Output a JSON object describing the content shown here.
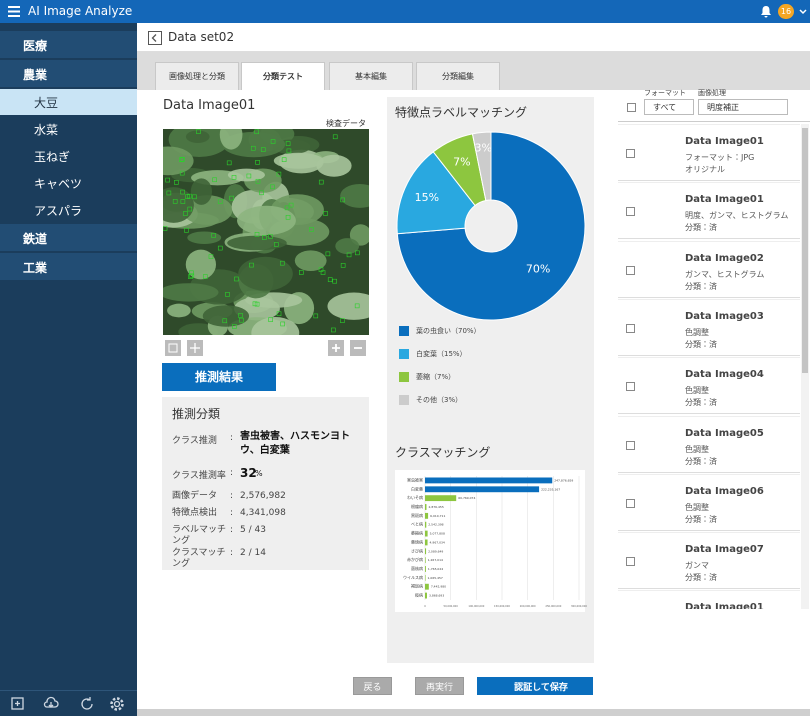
{
  "header": {
    "title": "AI Image Analyze",
    "badge": "16"
  },
  "sidebar": {
    "groups": [
      {
        "label": "医療"
      },
      {
        "label": "農業",
        "items": [
          "大豆",
          "水菜",
          "玉ねぎ",
          "キャベツ",
          "アスパラ"
        ]
      },
      {
        "label": "鉄道"
      },
      {
        "label": "工業"
      }
    ]
  },
  "breadcrumb": "Data set02",
  "tabs": [
    "画像処理と分類",
    "分類テスト",
    "基本編集",
    "分類編集"
  ],
  "image_panel": {
    "title": "Data Image01",
    "tag": "検査データ",
    "button": "推測結果"
  },
  "result": {
    "title": "推測分類",
    "separator": ":",
    "class_label": "クラス推測",
    "class_value": "害虫被害、ハスモンヨトウ、白変葉",
    "rate_label": "クラス推測率",
    "rate_value": "32",
    "rate_unit": "%",
    "rows": [
      {
        "label": "画像データ",
        "value": "2,576,982"
      },
      {
        "label": "特徴点検出",
        "value": "4,341,098"
      },
      {
        "label": "ラベルマッチング",
        "value": "5 / 43"
      },
      {
        "label": "クラスマッチング",
        "value": "2 / 14"
      }
    ]
  },
  "filters": [
    {
      "label": "フォーマット",
      "value": "すべて"
    },
    {
      "label": "画像処理",
      "value": "明度補正"
    }
  ],
  "list": [
    {
      "title": "Data Image01",
      "line1": "フォーマット：JPG",
      "line2": "オリジナル"
    },
    {
      "title": "Data Image01",
      "line1": "明度、ガンマ、ヒストグラム",
      "line2": "分類：済"
    },
    {
      "title": "Data Image02",
      "line1": "ガンマ、ヒストグラム",
      "line2": "分類：済"
    },
    {
      "title": "Data Image03",
      "line1": "色調整",
      "line2": "分類：済"
    },
    {
      "title": "Data Image04",
      "line1": "色調整",
      "line2": "分類：済"
    },
    {
      "title": "Data Image05",
      "line1": "色調整",
      "line2": "分類：済"
    },
    {
      "title": "Data Image06",
      "line1": "色調整",
      "line2": "分類：済"
    },
    {
      "title": "Data Image07",
      "line1": "ガンマ",
      "line2": "分類：済"
    },
    {
      "title": "Data Image01"
    }
  ],
  "buttons": [
    "戻る",
    "再実行",
    "認証して保存"
  ],
  "chart_data": [
    {
      "type": "pie",
      "title": "特徴点ラベルマッチング",
      "categories": [
        "葉の虫食い（70%）",
        "白変葉（15%）",
        "萎縮（7%）",
        "その他（3%）"
      ],
      "values": [
        70,
        15,
        7,
        3
      ],
      "value_labels": [
        "70%",
        "15%",
        "7%",
        "3%"
      ],
      "colors": [
        "#0a6ebd",
        "#29a8e0",
        "#8dc63f",
        "#cccccc"
      ]
    },
    {
      "type": "bar",
      "orientation": "horizontal",
      "title": "クラスマッチング",
      "categories": [
        "害虫被害",
        "白変葉",
        "わいそ病",
        "根瘤病",
        "黒斑病",
        "べと病",
        "萎縮病",
        "葉焼病",
        "さび病",
        "赤かび病",
        "菌核病",
        "ウイルス病",
        "褐斑病",
        "疫病"
      ],
      "values": [
        247876659,
        222235167,
        60769074,
        2876455,
        6010711,
        2542398,
        5077808,
        4967034,
        2089649,
        1267014,
        1765024,
        1065457,
        7442980,
        3868693
      ],
      "value_labels": [
        "247,876,659",
        "222,235,167",
        "60,769,074",
        "2,876,455",
        "6,010,711",
        "2,542,398",
        "5,077,808",
        "4,967,034",
        "2,089,649",
        "1,267,014",
        "1,765,024",
        "1,065,457",
        "7,442,980",
        "3,868,693"
      ],
      "colors": [
        "#0a6ebd",
        "#0a6ebd",
        "#8dc63f",
        "#8dc63f",
        "#8dc63f",
        "#8dc63f",
        "#8dc63f",
        "#8dc63f",
        "#8dc63f",
        "#8dc63f",
        "#8dc63f",
        "#8dc63f",
        "#8dc63f",
        "#8dc63f"
      ],
      "xlim": [
        0,
        300000000
      ],
      "xticks": [
        0,
        {
          "value": 50000000,
          "label": "50,000,000"
        },
        {
          "value": 100000000,
          "label": "100,000,000"
        },
        {
          "value": 150000000,
          "label": "150,000,000"
        },
        {
          "value": 200000000,
          "label": "200,000,000"
        },
        {
          "value": 250000000,
          "label": "250,000,000"
        },
        {
          "value": 300000000,
          "label": "300,000,000"
        }
      ],
      "grid": true
    }
  ]
}
